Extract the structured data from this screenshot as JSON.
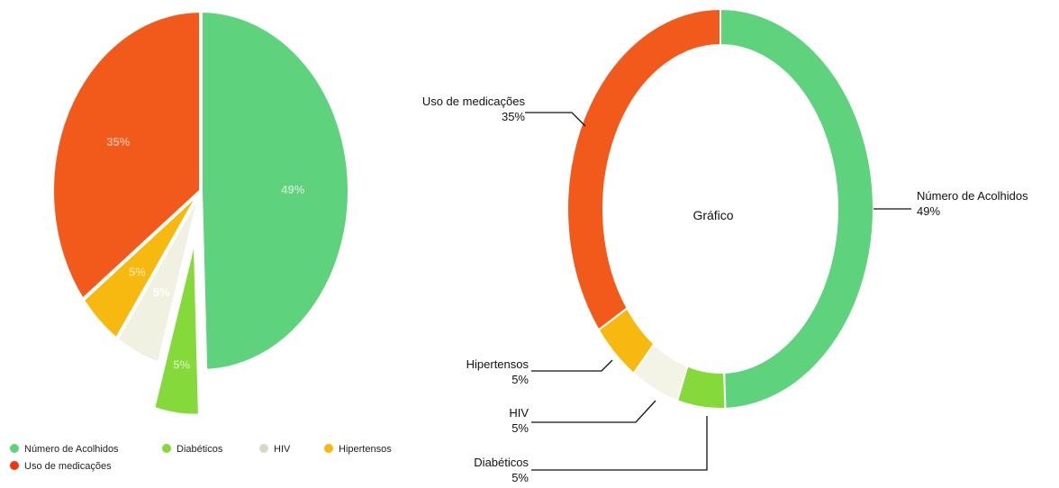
{
  "chart_data": [
    {
      "type": "pie",
      "exploded": "Diabéticos",
      "slices": [
        {
          "name": "Número de Acolhidos",
          "value": 49,
          "label": "49%",
          "color": "#5fd27e"
        },
        {
          "name": "Diabéticos",
          "value": 5,
          "label": "5%",
          "color": "#86d93a"
        },
        {
          "name": "HIV",
          "value": 5,
          "label": "5%",
          "color": "#f1f1e2"
        },
        {
          "name": "Hipertensos",
          "value": 5,
          "label": "5%",
          "color": "#f7b80f"
        },
        {
          "name": "Uso de medicações",
          "value": 35,
          "label": "35%",
          "color": "#f25a1c"
        }
      ],
      "legend": {
        "placement": "bottom",
        "entries": [
          {
            "name": "Número de Acolhidos",
            "color": "#5fd27e"
          },
          {
            "name": "Diabéticos",
            "color": "#86d93a"
          },
          {
            "name": "HIV",
            "color": "#d8d8c6"
          },
          {
            "name": "Hipertensos",
            "color": "#f7b80f"
          },
          {
            "name": "Uso de medicações",
            "color": "#f2360f"
          }
        ]
      }
    },
    {
      "type": "pie",
      "variant": "donut",
      "center_label": "Gráfico",
      "slices": [
        {
          "name": "Número de Acolhidos",
          "value": 49,
          "label": "49%",
          "color": "#5fd27e"
        },
        {
          "name": "Diabéticos",
          "value": 5,
          "label": "5%",
          "color": "#86d93a"
        },
        {
          "name": "HIV",
          "value": 5,
          "label": "5%",
          "color": "#f4f4e6"
        },
        {
          "name": "Hipertensos",
          "value": 5,
          "label": "5%",
          "color": "#f7b80f"
        },
        {
          "name": "Uso de medicações",
          "value": 35,
          "label": "35%",
          "color": "#f25a1c"
        }
      ]
    }
  ]
}
